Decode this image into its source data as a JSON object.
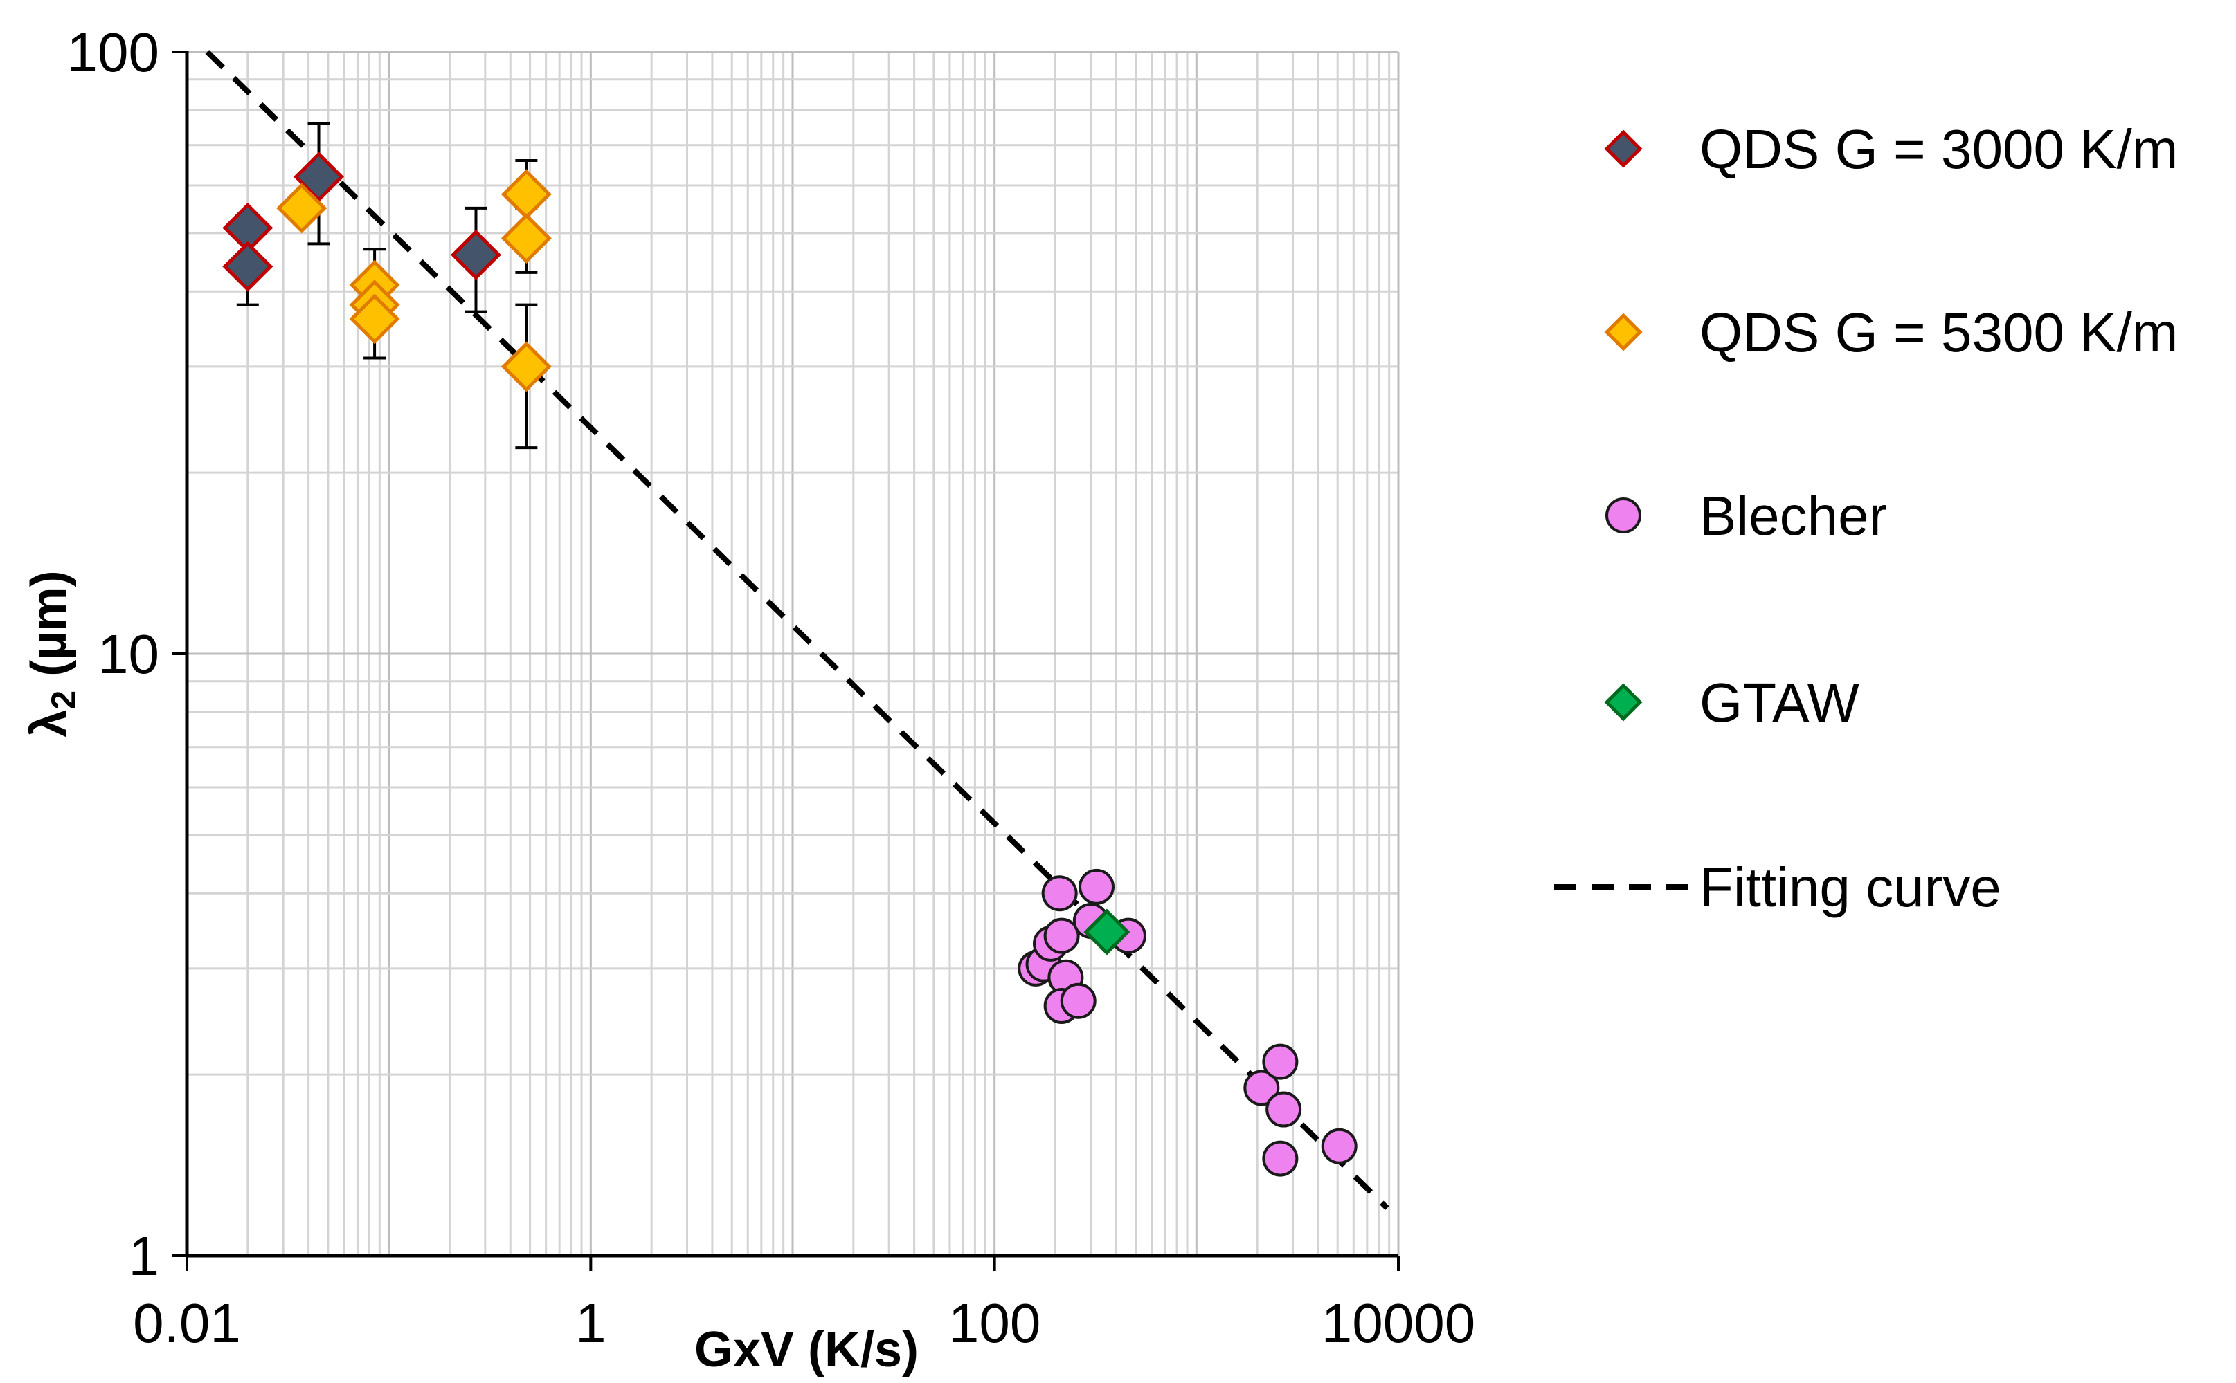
{
  "chart_data": {
    "type": "scatter",
    "xscale": "log",
    "yscale": "log",
    "xlabel": "GxV (K/s)",
    "ylabel_symbol": "λ",
    "ylabel_sub": "2",
    "ylabel_unit": " (µm)",
    "xlim": [
      0.01,
      10000
    ],
    "ylim": [
      1,
      100
    ],
    "x_ticks": [
      {
        "value": 0.01,
        "label": "0.01"
      },
      {
        "value": 1,
        "label": "1"
      },
      {
        "value": 100,
        "label": "100"
      },
      {
        "value": 10000,
        "label": "10000"
      }
    ],
    "y_ticks": [
      {
        "value": 1,
        "label": "1"
      },
      {
        "value": 10,
        "label": "10"
      },
      {
        "value": 100,
        "label": "100"
      }
    ],
    "grid": true,
    "legend_position": "right",
    "series": [
      {
        "name": "QDS G = 3000 K/m",
        "marker": "diamond",
        "fill": "#44546A",
        "stroke": "#C00000",
        "points": [
          {
            "x": 0.02,
            "y": 51,
            "err": 0
          },
          {
            "x": 0.02,
            "y": 44,
            "err": 6
          },
          {
            "x": 0.045,
            "y": 62,
            "err": 14
          },
          {
            "x": 0.27,
            "y": 46,
            "err": 9
          }
        ]
      },
      {
        "name": "QDS G = 5300 K/m",
        "marker": "diamond",
        "fill": "#FFC000",
        "stroke": "#E07B00",
        "points": [
          {
            "x": 0.037,
            "y": 55,
            "err": 0
          },
          {
            "x": 0.085,
            "y": 41,
            "err": 6
          },
          {
            "x": 0.085,
            "y": 38,
            "err": 0
          },
          {
            "x": 0.085,
            "y": 36,
            "err": 5
          },
          {
            "x": 0.48,
            "y": 58,
            "err": 8
          },
          {
            "x": 0.48,
            "y": 49,
            "err": 6
          },
          {
            "x": 0.48,
            "y": 30,
            "err": 8
          }
        ]
      },
      {
        "name": "Blecher",
        "marker": "circle",
        "fill": "#EE82EE",
        "stroke": "#1a1a1a",
        "points": [
          {
            "x": 160,
            "y": 3.0
          },
          {
            "x": 175,
            "y": 3.05
          },
          {
            "x": 190,
            "y": 3.3
          },
          {
            "x": 210,
            "y": 4.0
          },
          {
            "x": 215,
            "y": 3.4
          },
          {
            "x": 225,
            "y": 2.9
          },
          {
            "x": 215,
            "y": 2.6
          },
          {
            "x": 260,
            "y": 2.65
          },
          {
            "x": 320,
            "y": 4.1
          },
          {
            "x": 300,
            "y": 3.6
          },
          {
            "x": 460,
            "y": 3.4
          },
          {
            "x": 2100,
            "y": 1.9
          },
          {
            "x": 2600,
            "y": 2.1
          },
          {
            "x": 2700,
            "y": 1.75
          },
          {
            "x": 2600,
            "y": 1.45
          },
          {
            "x": 5100,
            "y": 1.52
          }
        ]
      },
      {
        "name": "GTAW",
        "marker": "diamond",
        "fill": "#00B050",
        "stroke": "#006B1F",
        "points": [
          {
            "x": 360,
            "y": 3.45
          }
        ]
      }
    ],
    "fit_line": {
      "name": "Fitting curve",
      "style": "dashed",
      "color": "#000000",
      "x": [
        0.0126,
        8800
      ],
      "y": [
        100,
        1.2
      ]
    }
  }
}
